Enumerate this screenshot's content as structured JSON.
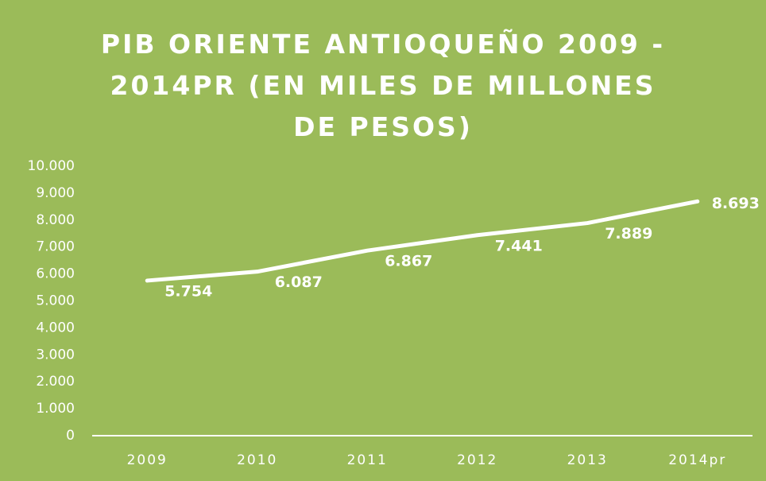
{
  "chart_data": {
    "type": "line",
    "title": "PIB ORIENTE ANTIOQUEÑO 2009 - 2014PR (EN MILES DE MILLONES DE PESOS)",
    "categories": [
      "2009",
      "2010",
      "2011",
      "2012",
      "2013",
      "2014pr"
    ],
    "series": [
      {
        "name": "PIB",
        "color": "#ffffff",
        "values": [
          5754,
          6087,
          6867,
          7441,
          7889,
          8693
        ],
        "value_labels": [
          "5.754",
          "6.087",
          "6.867",
          "7.441",
          "7.889",
          "8.693"
        ]
      }
    ],
    "ylim": [
      0,
      10000
    ],
    "yticks": [
      0,
      {
        "value": 1000,
        "label": "1.000"
      },
      {
        "value": 2000,
        "label": "2.000"
      },
      {
        "value": 3000,
        "label": "3.000"
      },
      {
        "value": 4000,
        "label": "4.000"
      },
      {
        "value": 5000,
        "label": "5.000"
      },
      {
        "value": 6000,
        "label": "6.000"
      },
      {
        "value": 7000,
        "label": "7.000"
      },
      {
        "value": 8000,
        "label": "8.000"
      },
      {
        "value": 9000,
        "label": "9.000"
      },
      {
        "value": 10000,
        "label": "10.000"
      }
    ],
    "background": "#9bbb59",
    "drop_lines": true
  }
}
